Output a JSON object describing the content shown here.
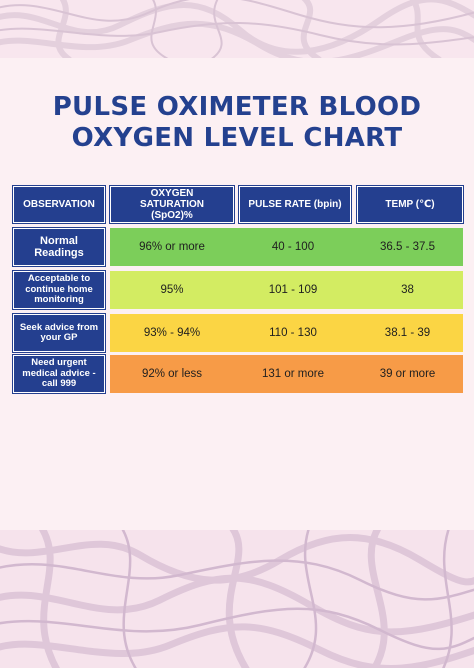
{
  "title": {
    "line1": "PULSE OXIMETER BLOOD",
    "line2": "OXYGEN LEVEL CHART"
  },
  "table": {
    "headers": [
      "OBSERVATION",
      "OXYGEN SATURATION (SpO2)%",
      "PULSE RATE (bpin)",
      "TEMP (℃)"
    ],
    "rows": [
      {
        "observation": "Normal Readings",
        "spo2": "96% or more",
        "pulse": "40 - 100",
        "temp": "36.5 - 37.5",
        "color": "#7cce5a"
      },
      {
        "observation": "Acceptable to continue home monitoring",
        "spo2": "95%",
        "pulse": "101 - 109",
        "temp": "38",
        "color": "#d3ec62"
      },
      {
        "observation": "Seek advice from your GP",
        "spo2": "93% - 94%",
        "pulse": "110 - 130",
        "temp": "38.1 - 39",
        "color": "#fbd544"
      },
      {
        "observation": "Need urgent medical advice - call 999",
        "spo2": "92% or less",
        "pulse": "131 or more",
        "temp": "39 or more",
        "color": "#f79b47"
      }
    ]
  },
  "colors": {
    "title": "#24418f",
    "header": "#243f8f",
    "background": "#fcf0f3"
  }
}
